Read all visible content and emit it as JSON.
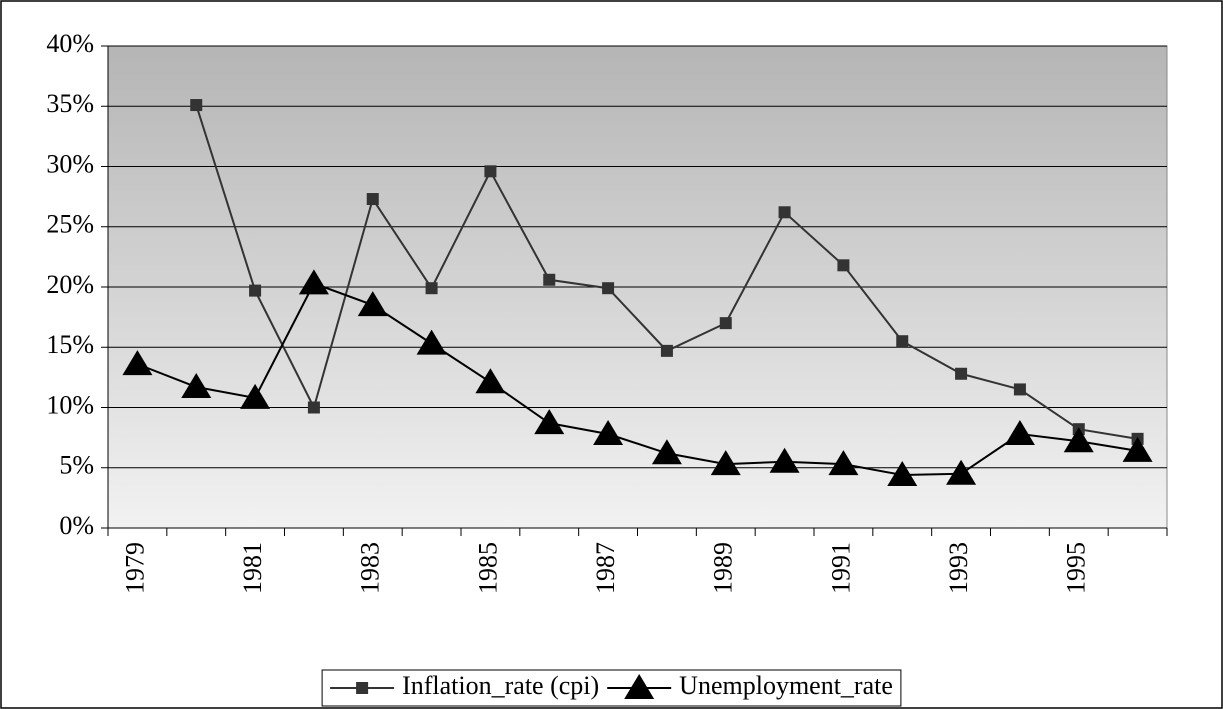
{
  "chart_data": {
    "type": "line",
    "categories": [
      "1979",
      null,
      "1981",
      null,
      "1983",
      null,
      "1985",
      null,
      "1987",
      null,
      "1989",
      null,
      "1991",
      null,
      "1993",
      null,
      "1995",
      null
    ],
    "series": [
      {
        "name": "Inflation_rate (cpi)",
        "color": "#333333",
        "marker": "square",
        "values": [
          null,
          35.1,
          19.7,
          10.0,
          27.3,
          19.9,
          29.6,
          20.6,
          19.9,
          14.7,
          17.0,
          26.2,
          21.8,
          15.5,
          12.8,
          11.5,
          8.2,
          7.4
        ]
      },
      {
        "name": "Unemployment_rate",
        "color": "#000000",
        "marker": "triangle",
        "values": [
          13.6,
          11.7,
          10.8,
          20.3,
          18.5,
          15.3,
          12.1,
          8.7,
          7.8,
          6.2,
          5.3,
          5.5,
          5.3,
          4.4,
          4.5,
          7.8,
          7.2,
          6.4
        ]
      }
    ],
    "ylim": [
      0,
      40
    ],
    "yticks": [
      {
        "value": 0,
        "label": "0%"
      },
      {
        "value": 5,
        "label": "5%"
      },
      {
        "value": 10,
        "label": "10%"
      },
      {
        "value": 15,
        "label": "15%"
      },
      {
        "value": 20,
        "label": "20%"
      },
      {
        "value": 25,
        "label": "25%"
      },
      {
        "value": 30,
        "label": "30%"
      },
      {
        "value": 35,
        "label": "35%"
      },
      {
        "value": 40,
        "label": "40%"
      }
    ],
    "grid": true,
    "legend": "bottom"
  }
}
